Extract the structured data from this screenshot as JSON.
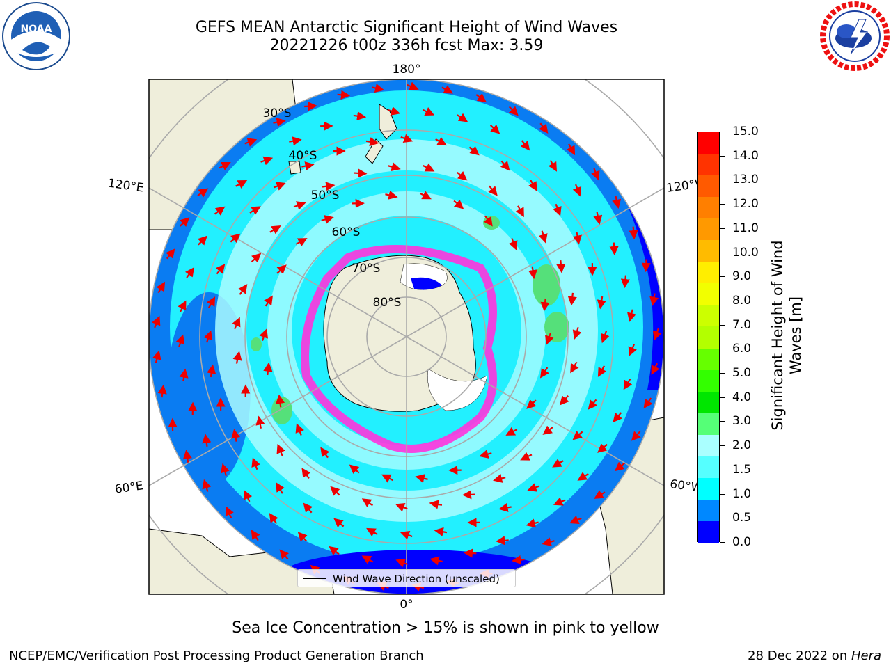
{
  "title_line1": "GEFS MEAN Antarctic Significant Height of Wind Waves",
  "title_line2": "20221226 t00z 336h fcst   Max: 3.59",
  "lon_labels": {
    "top": "180°",
    "bottom": "0°",
    "upper_left": "120°E",
    "upper_right": "120°W",
    "lower_left": "60°E",
    "lower_right": "60°W"
  },
  "lat_labels": [
    "30°S",
    "40°S",
    "50°S",
    "60°S",
    "70°S",
    "80°S"
  ],
  "legend_label": "Wind Wave Direction (unscaled)",
  "colorbar": {
    "title": "Significant Height of Wind Waves [m]",
    "ticks": [
      "15.0",
      "14.0",
      "13.0",
      "12.0",
      "11.0",
      "10.0",
      "9.0",
      "8.0",
      "7.0",
      "6.0",
      "5.0",
      "4.0",
      "3.0",
      "2.0",
      "1.5",
      "1.0",
      "0.5",
      "0.0"
    ],
    "colors": [
      "#ff0000",
      "#ff3300",
      "#ff5a00",
      "#ff7f00",
      "#ff9900",
      "#ffbb00",
      "#ffee00",
      "#f2ff00",
      "#ccff00",
      "#b3ff00",
      "#66ff00",
      "#33ff00",
      "#00e600",
      "#55ff77",
      "#aaffff",
      "#55ffff",
      "#00ffff",
      "#0088ff",
      "#0000ff"
    ]
  },
  "caption": "Sea Ice Concentration > 15% is shown in pink to yellow",
  "footer_left": "NCEP/EMC/Verification Post Processing Product Generation Branch",
  "footer_right_date": "28 Dec 2022 on ",
  "footer_right_machine": "Hera",
  "colors": {
    "land": "#efeedb",
    "deep_blue": "#0000ff",
    "blue": "#0a7cf2",
    "cyan": "#22f0ff",
    "light_cyan": "#aafcff",
    "green": "#55e07a",
    "arrow": "#ee0000",
    "ice_pink": "#ff33dd"
  }
}
